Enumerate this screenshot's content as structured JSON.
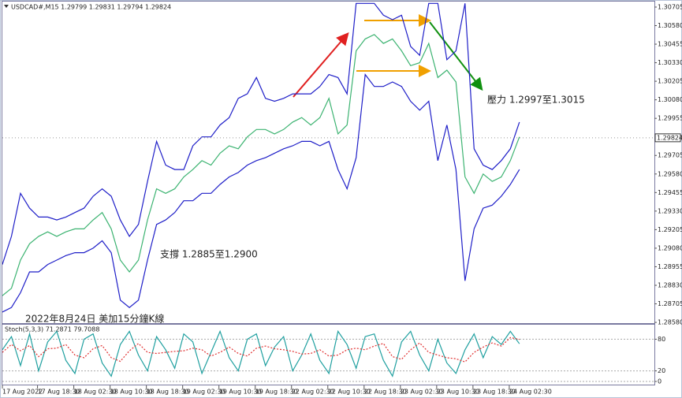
{
  "chart_data": [
    {
      "type": "line",
      "title": "USDCAD#,M15  1.29799 1.29831 1.29794 1.29824",
      "x": [
        0,
        8,
        16,
        24,
        32,
        40,
        48,
        56,
        64,
        72,
        80,
        88,
        96,
        104,
        112,
        120,
        128,
        136,
        144,
        152,
        160,
        168,
        176,
        184,
        192,
        200,
        208,
        216,
        224,
        232,
        240,
        248,
        256,
        264,
        272,
        280,
        288,
        296,
        304,
        312,
        320,
        328,
        336,
        344,
        352,
        360,
        368,
        376,
        384,
        392,
        400,
        408,
        416,
        424,
        432,
        440,
        448,
        456
      ],
      "series": [
        {
          "name": "Upper",
          "color": "#1f1fc8",
          "values": [
            1.2897,
            1.2916,
            1.2945,
            1.2935,
            1.2929,
            1.2929,
            1.2927,
            1.2929,
            1.2932,
            1.2935,
            1.2943,
            1.2948,
            1.2943,
            1.2927,
            1.2916,
            1.2924,
            1.2953,
            1.298,
            1.2964,
            1.2961,
            1.2961,
            1.2977,
            1.2983,
            1.2983,
            1.2991,
            1.2996,
            1.3009,
            1.3012,
            1.3023,
            1.3009,
            1.3007,
            1.3009,
            1.3012,
            1.3012,
            1.3012,
            1.3017,
            1.3025,
            1.3023,
            1.3012,
            1.3073,
            1.3073,
            1.3073,
            1.3065,
            1.3062,
            1.3065,
            1.3044,
            1.3038,
            1.3073,
            1.3073,
            1.3035,
            1.3041,
            1.3073,
            1.2975,
            1.2964,
            1.2961,
            1.2967,
            1.2975,
            1.2993
          ]
        },
        {
          "name": "Price",
          "color": "#3cb371",
          "values": [
            1.2876,
            1.2881,
            1.29,
            1.2911,
            1.2916,
            1.2919,
            1.2916,
            1.2919,
            1.2921,
            1.2921,
            1.2927,
            1.2932,
            1.2921,
            1.29,
            1.2892,
            1.29,
            1.2927,
            1.2948,
            1.2945,
            1.2948,
            1.2956,
            1.2961,
            1.2967,
            1.2964,
            1.2972,
            1.2977,
            1.2975,
            1.2983,
            1.2988,
            1.2988,
            1.2985,
            1.2988,
            1.2993,
            1.2996,
            1.2991,
            1.2996,
            1.3009,
            1.2985,
            1.2991,
            1.3041,
            1.3049,
            1.3052,
            1.3046,
            1.3049,
            1.3041,
            1.3031,
            1.3033,
            1.3046,
            1.3023,
            1.3028,
            1.302,
            1.2956,
            1.2945,
            1.2958,
            1.2953,
            1.2956,
            1.2967,
            1.2983
          ]
        },
        {
          "name": "Lower",
          "color": "#1f1fc8",
          "values": [
            1.2865,
            1.2868,
            1.2878,
            1.2892,
            1.2892,
            1.2897,
            1.29,
            1.2903,
            1.2905,
            1.2905,
            1.2908,
            1.2913,
            1.2905,
            1.2873,
            1.2868,
            1.2873,
            1.29,
            1.2924,
            1.2927,
            1.2932,
            1.294,
            1.294,
            1.2945,
            1.2945,
            1.2951,
            1.2956,
            1.2959,
            1.2964,
            1.2967,
            1.2969,
            1.2972,
            1.2975,
            1.2977,
            1.298,
            1.298,
            1.2977,
            1.298,
            1.2961,
            1.2948,
            1.2969,
            1.3025,
            1.3017,
            1.3017,
            1.302,
            1.3017,
            1.3007,
            1.3001,
            1.3007,
            1.2967,
            1.2991,
            1.2961,
            1.2886,
            1.2921,
            1.2935,
            1.2937,
            1.2943,
            1.2951,
            1.2961
          ]
        }
      ],
      "xlim": [
        0,
        575
      ],
      "ylim": [
        1.28575,
        1.30742
      ],
      "yticks": [
        1.30705,
        {
          "value": 1.3058,
          "label": "1.30580"
        },
        1.30455,
        {
          "value": 1.3033,
          "label": "1.30330"
        },
        1.30205,
        {
          "value": 1.3008,
          "label": "1.30080"
        },
        1.29955,
        1.29705,
        {
          "value": 1.2958,
          "label": "1.29580"
        },
        1.29455,
        {
          "value": 1.2933,
          "label": "1.29330"
        },
        1.29205,
        {
          "value": 1.2908,
          "label": "1.29080"
        },
        1.28955,
        {
          "value": 1.2883,
          "label": "1.28830"
        },
        1.28705,
        {
          "value": 1.2858,
          "label": "1.28580"
        }
      ],
      "xticks": [
        {
          "value": 0,
          "label": "17 Aug 2022"
        },
        {
          "value": 31,
          "label": "17 Aug 18:30"
        },
        {
          "value": 63,
          "label": "18 Aug 02:30"
        },
        {
          "value": 95,
          "label": "18 Aug 10:30"
        },
        {
          "value": 127,
          "label": "18 Aug 18:30"
        },
        {
          "value": 159,
          "label": "19 Aug 02:30"
        },
        {
          "value": 191,
          "label": "19 Aug 10:30"
        },
        {
          "value": 223,
          "label": "19 Aug 18:30"
        },
        {
          "value": 255,
          "label": "22 Aug 02:30"
        },
        {
          "value": 287,
          "label": "22 Aug 10:30"
        },
        {
          "value": 319,
          "label": "22 Aug 18:30"
        },
        {
          "value": 351,
          "label": "23 Aug 02:30"
        },
        {
          "value": 383,
          "label": "23 Aug 10:30"
        },
        {
          "value": 415,
          "label": "23 Aug 18:30"
        },
        {
          "value": 447,
          "label": "24 Aug 02:30"
        }
      ],
      "price_marker": 1.29824,
      "annotations": [
        "壓力 1.2997至1.3015",
        "支撐 1.2885至1.2900",
        "2022年8月24日 美加15分鐘K線"
      ]
    },
    {
      "type": "line",
      "title": "Stoch(5,3,3) 71.2871 79.7088",
      "x": [
        0,
        8,
        16,
        24,
        32,
        40,
        48,
        56,
        64,
        72,
        80,
        88,
        96,
        104,
        112,
        120,
        128,
        136,
        144,
        152,
        160,
        168,
        176,
        184,
        192,
        200,
        208,
        216,
        224,
        232,
        240,
        248,
        256,
        264,
        272,
        280,
        288,
        296,
        304,
        312,
        320,
        328,
        336,
        344,
        352,
        360,
        368,
        376,
        384,
        392,
        400,
        408,
        416,
        424,
        432,
        440,
        448,
        456
      ],
      "series": [
        {
          "name": "Main",
          "color": "#20a0a0",
          "line_style": "solid",
          "values": [
            60,
            85,
            30,
            90,
            20,
            75,
            95,
            40,
            15,
            80,
            90,
            35,
            10,
            70,
            95,
            50,
            20,
            85,
            60,
            25,
            90,
            75,
            15,
            55,
            95,
            45,
            20,
            80,
            90,
            30,
            65,
            85,
            20,
            50,
            90,
            40,
            15,
            95,
            70,
            25,
            85,
            90,
            40,
            10,
            75,
            95,
            50,
            20,
            80,
            35,
            15,
            60,
            90,
            45,
            85,
            70,
            95,
            71.3
          ]
        },
        {
          "name": "Signal",
          "color": "#e03030",
          "line_style": "dashed",
          "values": [
            55,
            70,
            58,
            68,
            47,
            62,
            63,
            70,
            50,
            45,
            62,
            68,
            45,
            38,
            58,
            72,
            55,
            53,
            55,
            57,
            58,
            63,
            60,
            48,
            55,
            65,
            53,
            48,
            63,
            67,
            62,
            60,
            57,
            52,
            53,
            60,
            48,
            50,
            60,
            63,
            60,
            67,
            72,
            47,
            42,
            60,
            73,
            55,
            50,
            45,
            43,
            37,
            55,
            65,
            73,
            67,
            83,
            79.7
          ]
        }
      ],
      "xlim": [
        0,
        575
      ],
      "ylim": [
        0,
        100
      ],
      "yticks": [
        0,
        20,
        80
      ],
      "grid": true
    }
  ]
}
